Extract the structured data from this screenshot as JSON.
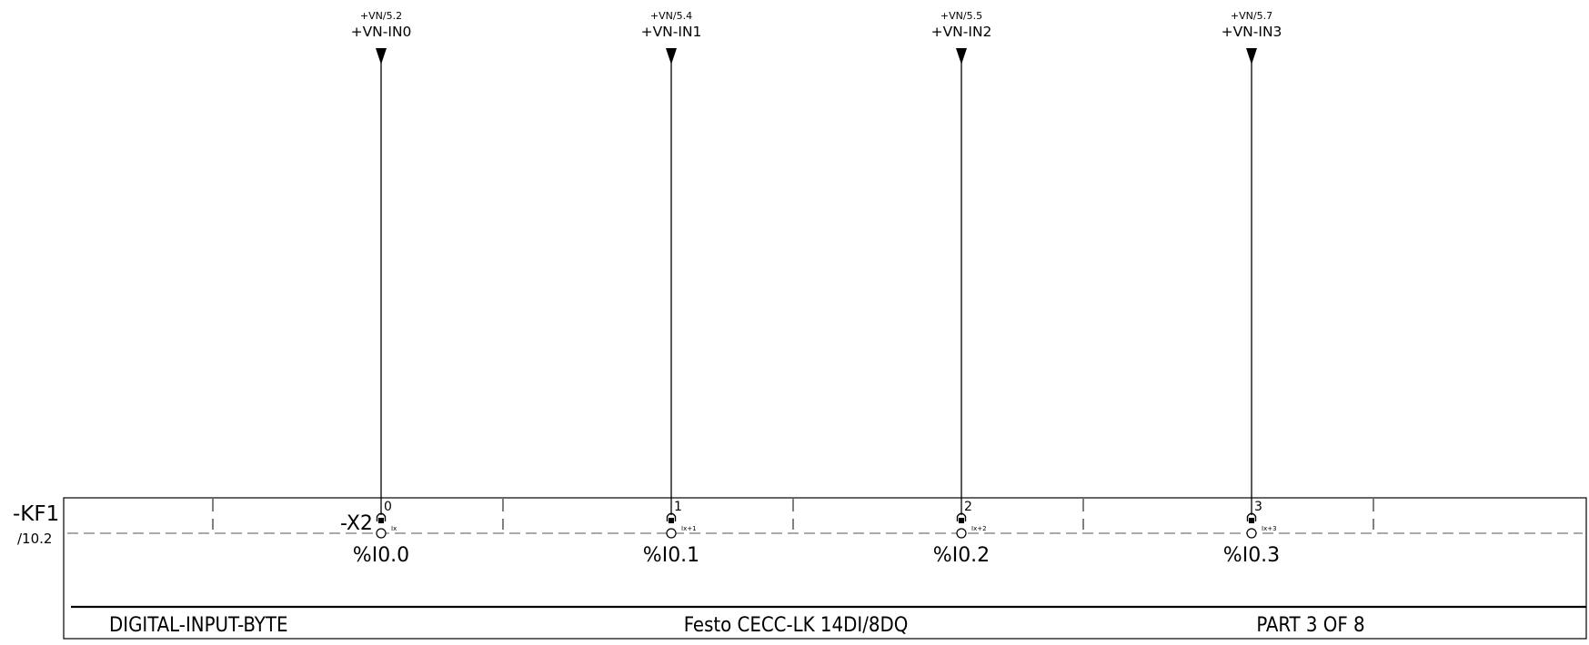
{
  "device": {
    "tag": "-KF1",
    "page_ref": "/10.2",
    "connector": "-X2"
  },
  "channels": [
    {
      "cross_ref": "+VN/5.2",
      "signal": "+VN-IN0",
      "pin": "0",
      "pin_function": "Ix",
      "address": "%I0.0"
    },
    {
      "cross_ref": "+VN/5.4",
      "signal": "+VN-IN1",
      "pin": "1",
      "pin_function": "Ix+1",
      "address": "%I0.1"
    },
    {
      "cross_ref": "+VN/5.5",
      "signal": "+VN-IN2",
      "pin": "2",
      "pin_function": "Ix+2",
      "address": "%I0.2"
    },
    {
      "cross_ref": "+VN/5.7",
      "signal": "+VN-IN3",
      "pin": "3",
      "pin_function": "Ix+3",
      "address": "%I0.3"
    }
  ],
  "footer": {
    "left": "DIGITAL-INPUT-BYTE",
    "center": "Festo CECC-LK 14DI/8DQ",
    "right": "PART 3 OF 8"
  }
}
